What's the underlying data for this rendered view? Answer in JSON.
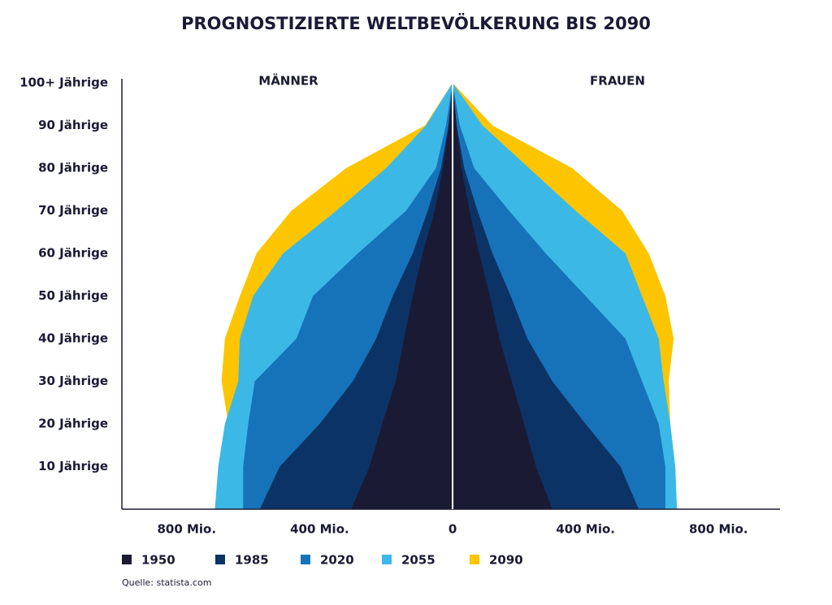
{
  "chart_data": {
    "type": "pyramid",
    "title": "PROGNOSTIZIERTE WELTBEVÖLKERUNG BIS 2090",
    "left_label": "MÄNNER",
    "right_label": "FRAUEN",
    "source": "Quelle: statista.com",
    "ages": [
      0,
      10,
      20,
      30,
      40,
      50,
      60,
      70,
      80,
      90,
      100
    ],
    "ylim": [
      0,
      100
    ],
    "yticks": [
      {
        "value": 10,
        "label": "10 Jährige"
      },
      {
        "value": 20,
        "label": "20 Jährige"
      },
      {
        "value": 30,
        "label": "30 Jährige"
      },
      {
        "value": 40,
        "label": "40 Jährige"
      },
      {
        "value": 50,
        "label": "50 Jährige"
      },
      {
        "value": 60,
        "label": "60 Jährige"
      },
      {
        "value": 70,
        "label": "70 Jährige"
      },
      {
        "value": 80,
        "label": "80 Jährige"
      },
      {
        "value": 90,
        "label": "90 Jährige"
      },
      {
        "value": 100,
        "label": "100+ Jährige"
      }
    ],
    "xlim": [
      -995,
      985
    ],
    "xticks": [
      {
        "value": -800,
        "label": "800 Mio."
      },
      {
        "value": -400,
        "label": "400 Mio."
      },
      0,
      {
        "value": 400,
        "label": "400 Mio."
      },
      {
        "value": 800,
        "label": "800 Mio."
      }
    ],
    "series": [
      {
        "name": "1950",
        "color": "#1b1a35",
        "male": [
          -305,
          -250,
          -212,
          -171,
          -146,
          -120,
          -90,
          -54,
          -29,
          -12,
          0
        ],
        "female": [
          300,
          251,
          215,
          178,
          141,
          112,
          80,
          51,
          27,
          12,
          0
        ]
      },
      {
        "name": "1985",
        "color": "#0c3366",
        "male": [
          -580,
          -520,
          -400,
          -300,
          -230,
          -180,
          -120,
          -75,
          -35,
          -12,
          0
        ],
        "female": [
          560,
          505,
          400,
          300,
          225,
          175,
          120,
          75,
          35,
          12,
          0
        ]
      },
      {
        "name": "2020",
        "color": "#1773b9",
        "male": [
          -630,
          -630,
          -615,
          -595,
          -470,
          -420,
          -285,
          -140,
          -50,
          -20,
          0
        ],
        "female": [
          640,
          640,
          620,
          570,
          520,
          400,
          280,
          170,
          65,
          22,
          0
        ]
      },
      {
        "name": "2055",
        "color": "#3cb8e6",
        "male": [
          -715,
          -705,
          -685,
          -645,
          -640,
          -600,
          -510,
          -350,
          -200,
          -80,
          0
        ],
        "female": [
          675,
          670,
          655,
          635,
          620,
          570,
          520,
          370,
          230,
          90,
          0
        ]
      },
      {
        "name": "2090",
        "color": "#fcc500",
        "male": [
          -665,
          -670,
          -675,
          -695,
          -685,
          -640,
          -590,
          -485,
          -320,
          -83,
          0
        ],
        "female": [
          635,
          650,
          655,
          650,
          665,
          640,
          590,
          510,
          360,
          120,
          0
        ]
      }
    ]
  }
}
